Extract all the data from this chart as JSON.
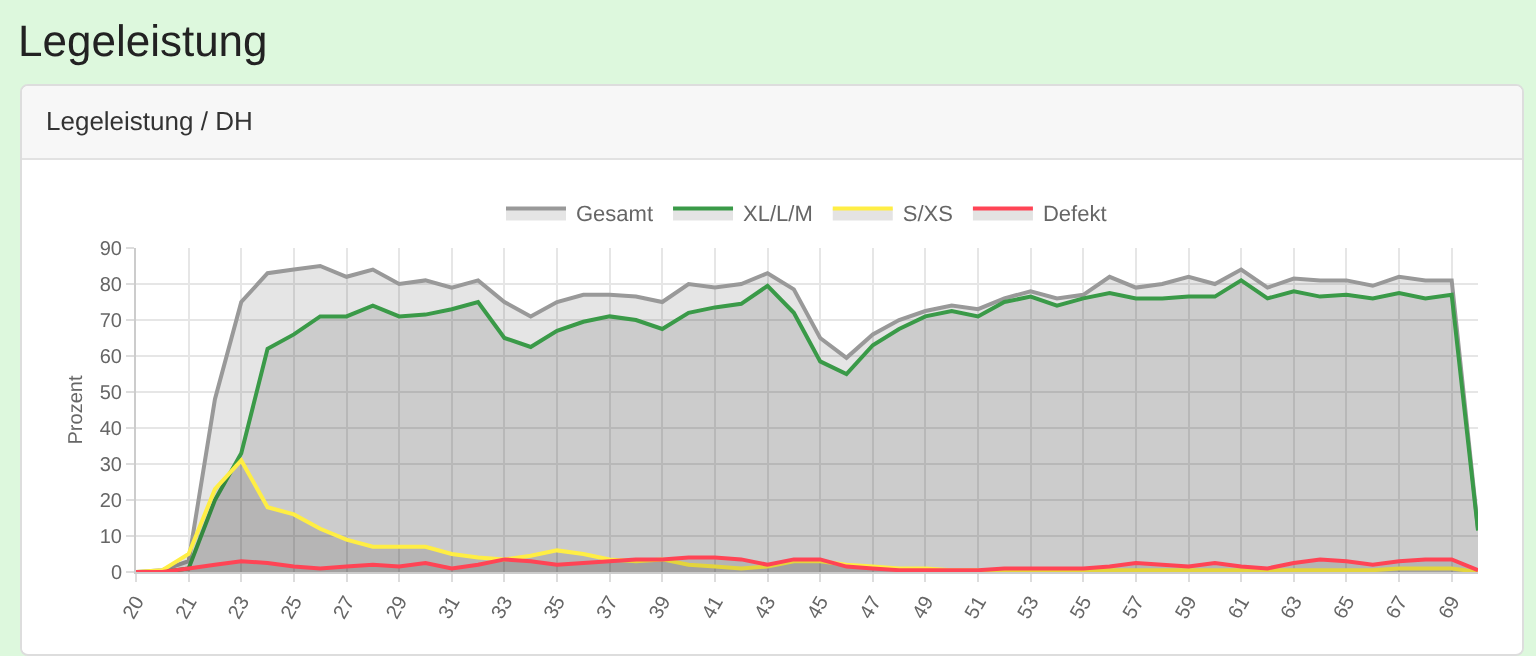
{
  "chart_data": {
    "type": "area",
    "title": "Legeleistung",
    "subtitle": "Legeleistung / DH",
    "ylabel": "Prozent",
    "categories": [
      "20",
      null,
      "21",
      null,
      "23",
      null,
      "25",
      null,
      "27",
      null,
      "29",
      null,
      "31",
      null,
      "33",
      null,
      "35",
      null,
      "37",
      null,
      "39",
      null,
      "41",
      null,
      "43",
      null,
      "45",
      null,
      "47",
      null,
      "49",
      null,
      "51",
      null,
      "53",
      null,
      "55",
      null,
      "57",
      null,
      "59",
      null,
      "61",
      null,
      "63",
      null,
      "65",
      null,
      "67",
      null,
      "69",
      null
    ],
    "series": [
      {
        "name": "Gesamt",
        "color": "#999999",
        "values": [
          0,
          0.5,
          3,
          48,
          75,
          83,
          84,
          85,
          82,
          84,
          80,
          81,
          79,
          81,
          75,
          71,
          75,
          77,
          77,
          76.5,
          75,
          80,
          79,
          80,
          83,
          78.5,
          65,
          59.5,
          66,
          70,
          72.5,
          74,
          73,
          76,
          78,
          76,
          77,
          82,
          79,
          80,
          82,
          80,
          84,
          79,
          81.5,
          81,
          81,
          79.5,
          82,
          81,
          81,
          12
        ]
      },
      {
        "name": "XL/L/M",
        "color": "#3a9a48",
        "values": [
          0,
          0,
          1,
          20,
          33,
          62,
          66,
          71,
          71,
          74,
          71,
          71.5,
          73,
          75,
          65,
          62.5,
          67,
          69.5,
          71,
          70,
          67.5,
          72,
          73.5,
          74.5,
          79.5,
          72,
          58.5,
          55,
          63,
          67.5,
          71,
          72.5,
          71,
          75,
          76.5,
          74,
          76,
          77.5,
          76,
          76,
          76.5,
          76.5,
          81,
          76,
          78,
          76.5,
          77,
          76,
          77.5,
          76,
          77,
          11.5
        ]
      },
      {
        "name": "S/XS",
        "color": "#ffee44",
        "values": [
          0,
          0.5,
          5,
          23,
          31,
          18,
          16,
          12,
          9,
          7,
          7,
          7,
          5,
          4,
          3.5,
          4.5,
          6,
          5,
          3.5,
          3,
          3.5,
          2,
          1.5,
          1,
          1.5,
          3,
          3,
          2,
          1.5,
          1,
          1,
          0.5,
          0.5,
          0.5,
          0.5,
          0.5,
          0.5,
          0.5,
          0.5,
          0.5,
          0.5,
          0.5,
          0.5,
          0.5,
          0.5,
          0.5,
          0.5,
          0.5,
          1,
          1,
          1,
          0
        ]
      },
      {
        "name": "Defekt",
        "color": "#ff4455",
        "values": [
          0,
          0,
          1,
          2,
          3,
          2.5,
          1.5,
          1,
          1.5,
          2,
          1.5,
          2.5,
          1,
          2,
          3.5,
          3,
          2,
          2.5,
          3,
          3.5,
          3.5,
          4,
          4,
          3.5,
          2,
          3.5,
          3.5,
          1.5,
          1,
          0.5,
          0.5,
          0.5,
          0.5,
          1,
          1,
          1,
          1,
          1.5,
          2.5,
          2,
          1.5,
          2.5,
          1.5,
          1,
          2.5,
          3.5,
          3,
          2,
          3,
          3.5,
          3.5,
          0.5
        ]
      }
    ],
    "ylim": [
      0,
      90
    ],
    "yticks": [
      0,
      10,
      20,
      30,
      40,
      50,
      60,
      70,
      80,
      90
    ],
    "grid": true,
    "legend": "top",
    "marker": "none"
  }
}
